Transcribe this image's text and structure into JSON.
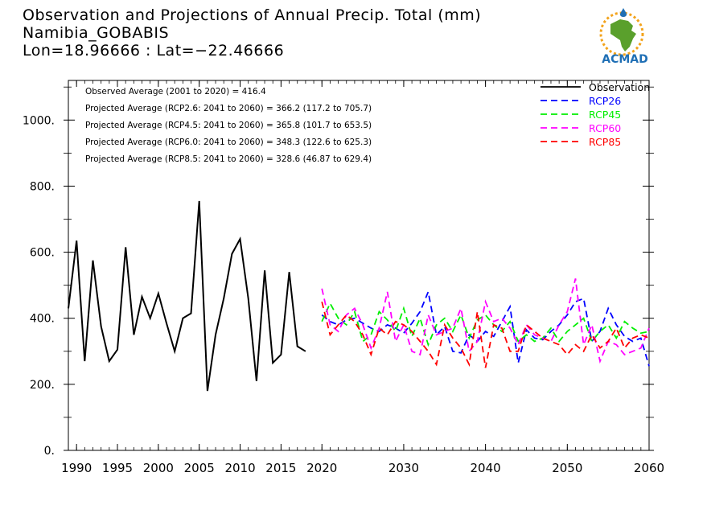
{
  "title": {
    "line1": "Observation and Projections of Annual Precip. Total (mm)",
    "line2": "Namibia_GOBABIS",
    "line3": "Lon=18.96666 : Lat=−22.46666"
  },
  "logo": {
    "text": "ACMAD",
    "icon": "africa-logo-icon"
  },
  "colors": {
    "observation": "#000000",
    "rcp26": "#0000ff",
    "rcp45": "#00ee00",
    "rcp60": "#ff00ff",
    "rcp85": "#ff0000",
    "logo_green": "#5aa02c",
    "logo_blue": "#1f6fb5",
    "logo_orange": "#f39c12"
  },
  "chart_data": {
    "type": "line",
    "xlim": [
      1989,
      2060
    ],
    "ylim": [
      0,
      1120
    ],
    "x_ticks": [
      1990,
      1995,
      2000,
      2005,
      2010,
      2015,
      2020,
      2030,
      2040,
      2050,
      2060
    ],
    "y_ticks": [
      0,
      200,
      400,
      600,
      800,
      1000
    ],
    "y_tick_labels": [
      "0.",
      "200.",
      "400.",
      "600.",
      "800.",
      "1000."
    ],
    "legend_position": "top-right",
    "annotations": [
      "Observed Average (2001 to 2020) = 416.4",
      "Projected Average (RCP2.6: 2041 to 2060) = 366.2 (117.2 to 705.7)",
      "Projected Average (RCP4.5: 2041 to 2060) = 365.8 (101.7 to 653.5)",
      "Projected Average (RCP6.0: 2041 to 2060) = 348.3 (122.6 to 625.3)",
      "Projected Average (RCP8.5: 2041 to 2060) = 328.6 (46.87 to 629.4)"
    ],
    "series": [
      {
        "name": "Observation",
        "style": "solid",
        "x": [
          1989,
          1990,
          1991,
          1992,
          1993,
          1994,
          1995,
          1996,
          1997,
          1998,
          1999,
          2000,
          2001,
          2002,
          2003,
          2004,
          2005,
          2006,
          2007,
          2008,
          2009,
          2010,
          2011,
          2012,
          2013,
          2014,
          2015,
          2016,
          2017,
          2018,
          2019,
          2020
        ],
        "y": [
          430,
          635,
          270,
          575,
          375,
          270,
          305,
          615,
          350,
          465,
          400,
          475,
          385,
          300,
          400,
          415,
          755,
          180,
          350,
          460,
          595,
          640,
          460,
          210,
          545,
          265,
          290,
          540,
          315,
          300,
          null,
          null
        ]
      },
      {
        "name": "RCP26",
        "style": "dashed",
        "x": [
          2020,
          2021,
          2022,
          2023,
          2024,
          2025,
          2026,
          2027,
          2028,
          2029,
          2030,
          2031,
          2032,
          2033,
          2034,
          2035,
          2036,
          2037,
          2038,
          2039,
          2040,
          2041,
          2042,
          2043,
          2044,
          2045,
          2046,
          2047,
          2048,
          2049,
          2050,
          2051,
          2052,
          2053,
          2054,
          2055,
          2056,
          2057,
          2058,
          2059,
          2060
        ],
        "y": [
          410,
          390,
          380,
          395,
          400,
          385,
          370,
          360,
          380,
          370,
          355,
          385,
          420,
          480,
          350,
          375,
          300,
          295,
          350,
          330,
          360,
          345,
          390,
          435,
          265,
          365,
          340,
          335,
          360,
          380,
          410,
          450,
          460,
          330,
          360,
          430,
          380,
          345,
          330,
          340,
          255
        ]
      },
      {
        "name": "RCP45",
        "style": "dashed",
        "x": [
          2020,
          2021,
          2022,
          2023,
          2024,
          2025,
          2026,
          2027,
          2028,
          2029,
          2030,
          2031,
          2032,
          2033,
          2034,
          2035,
          2036,
          2037,
          2038,
          2039,
          2040,
          2041,
          2042,
          2043,
          2044,
          2045,
          2046,
          2047,
          2048,
          2049,
          2050,
          2051,
          2052,
          2053,
          2054,
          2055,
          2056,
          2057,
          2058,
          2059,
          2060
        ],
        "y": [
          390,
          445,
          400,
          380,
          420,
          330,
          350,
          420,
          395,
          360,
          430,
          345,
          400,
          320,
          380,
          400,
          360,
          410,
          340,
          395,
          410,
          380,
          360,
          390,
          330,
          350,
          330,
          340,
          370,
          330,
          360,
          380,
          400,
          330,
          360,
          380,
          340,
          390,
          370,
          355,
          360
        ]
      },
      {
        "name": "RCP60",
        "style": "dashed",
        "x": [
          2020,
          2021,
          2022,
          2023,
          2024,
          2025,
          2026,
          2027,
          2028,
          2029,
          2030,
          2031,
          2032,
          2033,
          2034,
          2035,
          2036,
          2037,
          2038,
          2039,
          2040,
          2041,
          2042,
          2043,
          2044,
          2045,
          2046,
          2047,
          2048,
          2049,
          2050,
          2051,
          2052,
          2053,
          2054,
          2055,
          2056,
          2057,
          2058,
          2059,
          2060
        ],
        "y": [
          490,
          380,
          360,
          410,
          430,
          380,
          310,
          370,
          480,
          330,
          380,
          300,
          290,
          410,
          350,
          360,
          370,
          430,
          300,
          330,
          450,
          390,
          400,
          370,
          320,
          380,
          350,
          340,
          330,
          380,
          420,
          520,
          320,
          380,
          270,
          330,
          320,
          290,
          300,
          310,
          370
        ]
      },
      {
        "name": "RCP85",
        "style": "dashed",
        "x": [
          2020,
          2021,
          2022,
          2023,
          2024,
          2025,
          2026,
          2027,
          2028,
          2029,
          2030,
          2031,
          2032,
          2033,
          2034,
          2035,
          2036,
          2037,
          2038,
          2039,
          2040,
          2041,
          2042,
          2043,
          2044,
          2045,
          2046,
          2047,
          2048,
          2049,
          2050,
          2051,
          2052,
          2053,
          2054,
          2055,
          2056,
          2057,
          2058,
          2059,
          2060
        ],
        "y": [
          450,
          350,
          380,
          410,
          390,
          350,
          290,
          370,
          350,
          390,
          380,
          360,
          330,
          300,
          260,
          380,
          340,
          310,
          260,
          420,
          250,
          380,
          370,
          300,
          300,
          380,
          360,
          340,
          330,
          320,
          290,
          320,
          300,
          350,
          310,
          330,
          370,
          310,
          340,
          350,
          340
        ]
      }
    ]
  }
}
